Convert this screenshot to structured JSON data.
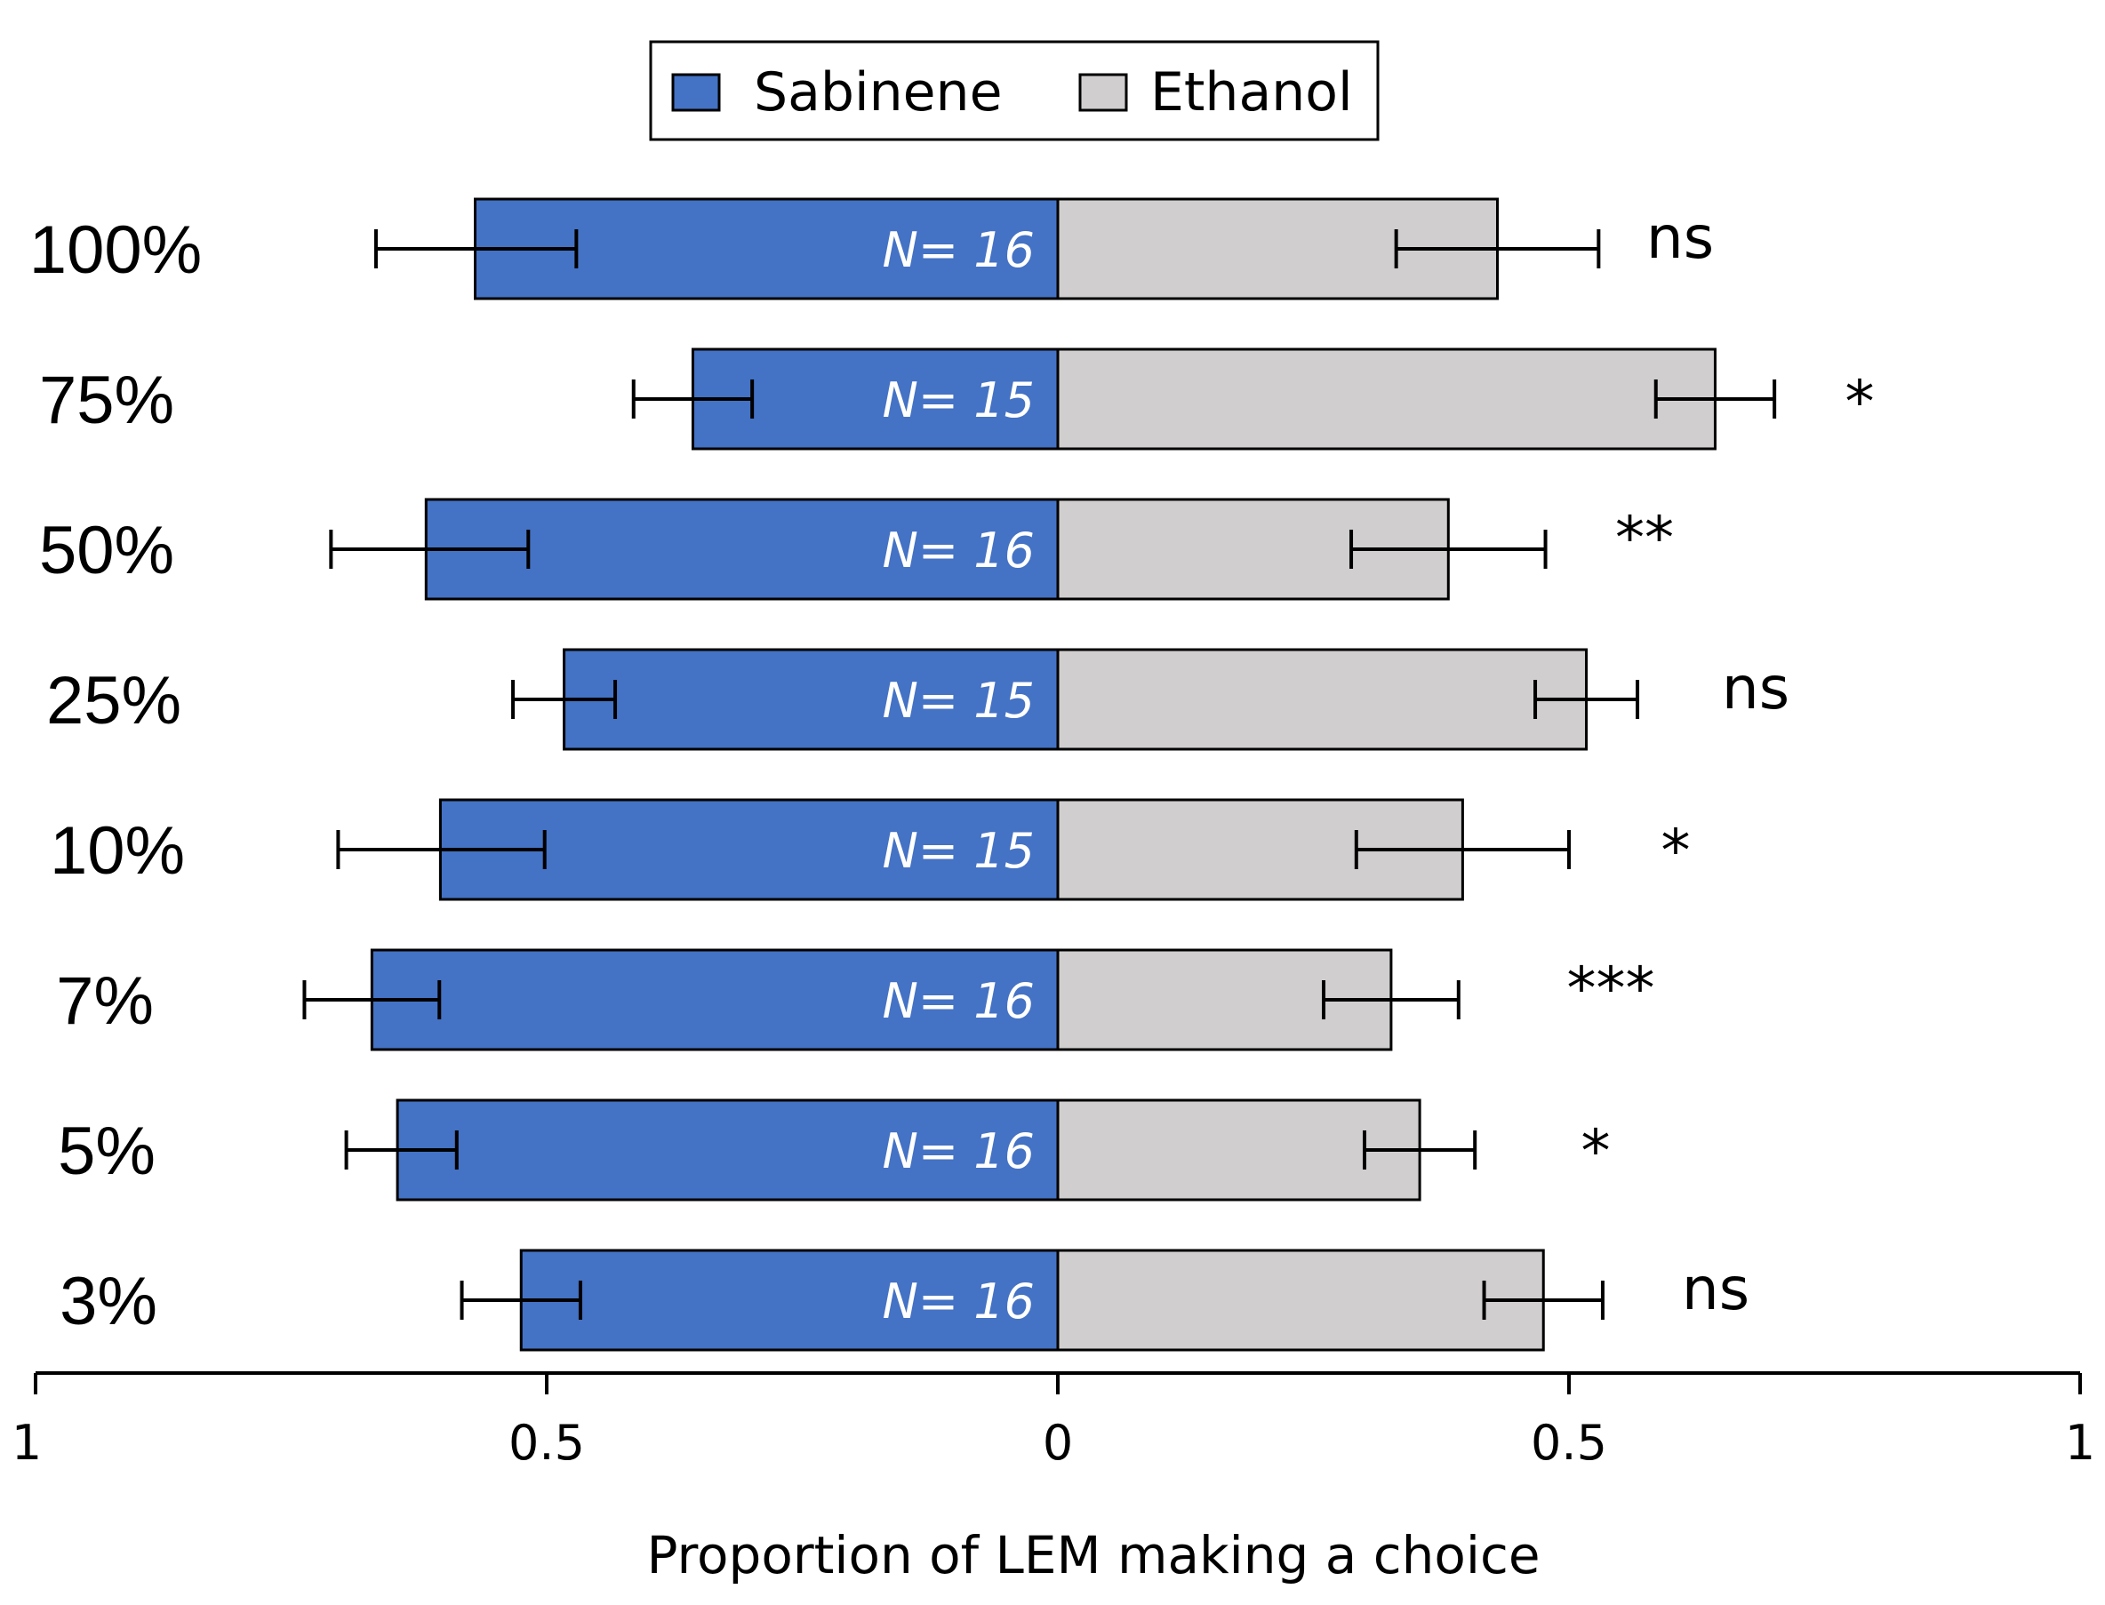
{
  "chart_data": {
    "type": "bar",
    "orientation": "horizontal-diverging",
    "xlabel": "Proportion of LEM making a choice",
    "xlim": [
      -1,
      1
    ],
    "x_ticks": [
      -1,
      -0.5,
      0,
      0.5,
      1
    ],
    "x_tick_labels": [
      "1",
      "0.5",
      "0",
      "0.5",
      "1"
    ],
    "legend": {
      "placement": "top-center",
      "entries": [
        {
          "name": "Sabinene",
          "color": "#4472c4"
        },
        {
          "name": "Ethanol",
          "color": "#d0cece"
        }
      ]
    },
    "categories": [
      "100%",
      "75%",
      "50%",
      "25%",
      "10%",
      "7%",
      "5%",
      "3%"
    ],
    "series": [
      {
        "name": "Sabinene",
        "side": "left",
        "color": "#4472c4",
        "values": [
          0.57,
          0.357,
          0.618,
          0.483,
          0.604,
          0.671,
          0.646,
          0.525
        ],
        "error_low": [
          0.667,
          0.415,
          0.711,
          0.533,
          0.704,
          0.737,
          0.696,
          0.583
        ],
        "error_high": [
          0.471,
          0.299,
          0.518,
          0.433,
          0.502,
          0.605,
          0.588,
          0.467
        ]
      },
      {
        "name": "Ethanol",
        "side": "right",
        "color": "#d0cece",
        "values": [
          0.43,
          0.643,
          0.382,
          0.517,
          0.396,
          0.326,
          0.354,
          0.475
        ],
        "error_low": [
          0.331,
          0.585,
          0.287,
          0.467,
          0.292,
          0.26,
          0.3,
          0.417
        ],
        "error_high": [
          0.529,
          0.701,
          0.477,
          0.567,
          0.5,
          0.392,
          0.408,
          0.533
        ]
      }
    ],
    "n_labels": [
      "N= 16",
      "N= 15",
      "N= 16",
      "N= 15",
      "N= 15",
      "N= 16",
      "N= 16",
      "N= 16"
    ],
    "significance": [
      "ns",
      "*",
      "**",
      "ns",
      "*",
      "***",
      "*",
      "ns"
    ]
  }
}
